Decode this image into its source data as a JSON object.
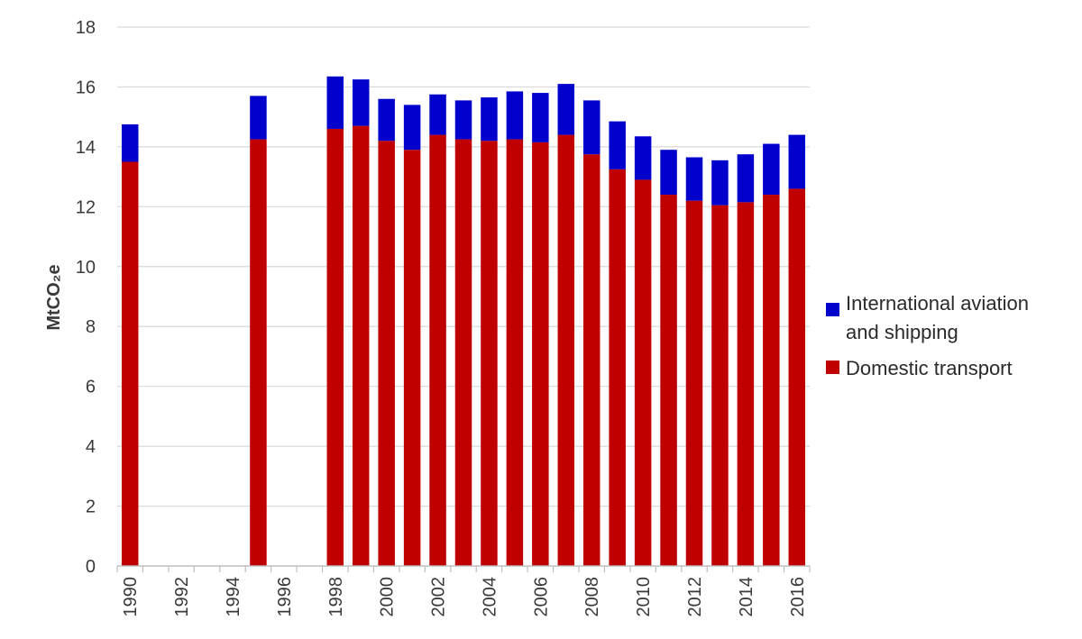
{
  "chart_data": {
    "type": "bar",
    "stacked": true,
    "ylabel": "MtCO₂e",
    "ylim": [
      0,
      18
    ],
    "ytick_step": 2,
    "grid": true,
    "legend_position": "right",
    "x": [
      1990,
      1991,
      1992,
      1993,
      1994,
      1995,
      1996,
      1997,
      1998,
      1999,
      2000,
      2001,
      2002,
      2003,
      2004,
      2005,
      2006,
      2007,
      2008,
      2009,
      2010,
      2011,
      2012,
      2013,
      2014,
      2015,
      2016
    ],
    "x_tick_labels": [
      "1990",
      "1992",
      "1994",
      "1996",
      "1998",
      "2000",
      "2002",
      "2004",
      "2006",
      "2008",
      "2010",
      "2012",
      "2014",
      "2016"
    ],
    "series": [
      {
        "name": "Domestic transport",
        "color": "#c00000",
        "values": [
          13.5,
          null,
          null,
          null,
          null,
          14.25,
          null,
          null,
          14.6,
          14.7,
          14.2,
          13.9,
          14.4,
          14.25,
          14.2,
          14.25,
          14.15,
          14.4,
          13.75,
          13.25,
          12.9,
          12.4,
          12.2,
          12.05,
          12.15,
          12.4,
          12.6
        ]
      },
      {
        "name": "International aviation and shipping",
        "color": "#0000cc",
        "values": [
          1.25,
          null,
          null,
          null,
          null,
          1.45,
          null,
          null,
          1.75,
          1.55,
          1.4,
          1.5,
          1.35,
          1.3,
          1.45,
          1.6,
          1.65,
          1.7,
          1.8,
          1.6,
          1.45,
          1.5,
          1.45,
          1.5,
          1.6,
          1.7,
          1.8
        ]
      }
    ],
    "legend": [
      {
        "label_lines": [
          "International aviation",
          "and shipping"
        ],
        "color": "#0000cc"
      },
      {
        "label_lines": [
          "Domestic transport"
        ],
        "color": "#c00000"
      }
    ]
  }
}
